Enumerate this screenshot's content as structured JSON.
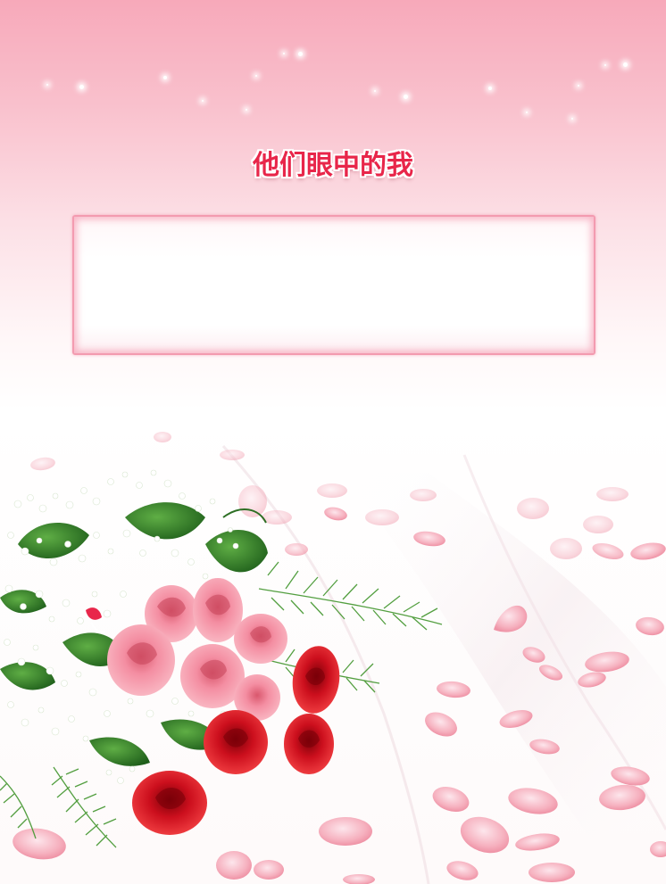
{
  "page": {
    "title": "他们眼中的我"
  },
  "text_box": {
    "content": ""
  },
  "decoration": {
    "subject": "bouquet-of-roses-with-petals",
    "colors": {
      "top_pink": "#f7a9ba",
      "title_red": "#e8264a",
      "box_border": "#f39bb0",
      "rose_pink": "#f58a9e",
      "rose_red": "#d8101c",
      "leaf_green": "#3f8f2f",
      "petal_pink": "#f6a9b9"
    }
  }
}
